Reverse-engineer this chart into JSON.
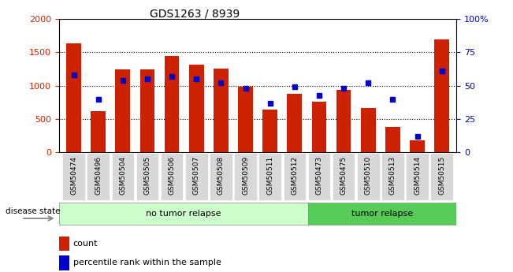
{
  "title": "GDS1263 / 8939",
  "categories": [
    "GSM50474",
    "GSM50496",
    "GSM50504",
    "GSM50505",
    "GSM50506",
    "GSM50507",
    "GSM50508",
    "GSM50509",
    "GSM50511",
    "GSM50512",
    "GSM50473",
    "GSM50475",
    "GSM50510",
    "GSM50513",
    "GSM50514",
    "GSM50515"
  ],
  "counts": [
    1640,
    620,
    1250,
    1240,
    1450,
    1310,
    1260,
    980,
    640,
    880,
    760,
    940,
    660,
    380,
    180,
    1700
  ],
  "percentiles": [
    58,
    40,
    54,
    55,
    57,
    55,
    52,
    48,
    37,
    49,
    43,
    48,
    52,
    40,
    12,
    61
  ],
  "no_tumor_count": 10,
  "groups": [
    {
      "label": "no tumor relapse",
      "color": "#ccffcc"
    },
    {
      "label": "tumor relapse",
      "color": "#55cc55"
    }
  ],
  "bar_color": "#cc2200",
  "dot_color": "#0000cc",
  "left_ylim": [
    0,
    2000
  ],
  "right_ylim": [
    0,
    100
  ],
  "left_yticks": [
    0,
    500,
    1000,
    1500,
    2000
  ],
  "right_yticks": [
    0,
    25,
    50,
    75,
    100
  ],
  "right_yticklabels": [
    "0",
    "25",
    "50",
    "75",
    "100%"
  ],
  "grid_values": [
    500,
    1000,
    1500
  ],
  "tick_bg": "#d8d8d8",
  "bar_width": 0.6
}
